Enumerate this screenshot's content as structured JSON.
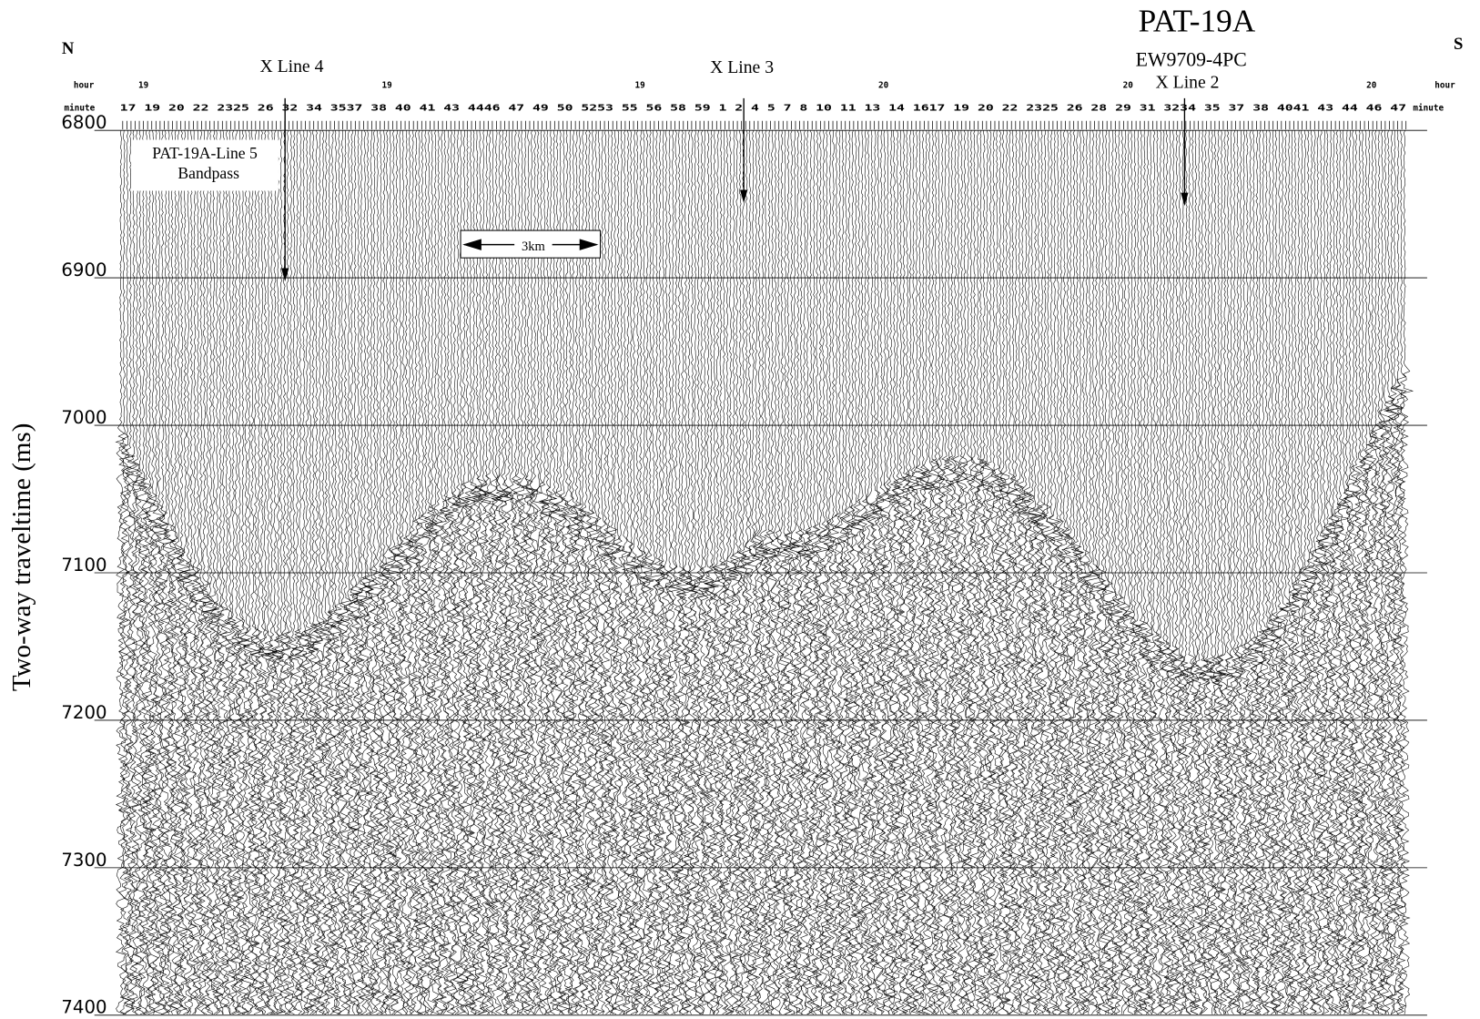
{
  "chart_data": {
    "type": "seismic",
    "title": "PAT-19A",
    "subtitle": "EW9709-4PC",
    "left_label": "N",
    "right_label": "S",
    "ylabel": "Two-way traveltime (ms)",
    "ylim": [
      6800,
      7400
    ],
    "yticks": [
      6800,
      6900,
      7000,
      7100,
      7200,
      7300,
      7400
    ],
    "grid": true,
    "hour_label": "hour",
    "minute_label": "minute",
    "hours": [
      "19",
      "19",
      "19",
      "20",
      "20",
      "20"
    ],
    "minute_row": "17 19 20 22 2325 26 32 34 3537 38 40 41 43 4446 47 49 50 5253 55 56 58 59 1 2 4 5 7 8 10 11 13 14 1617 19 20 22 2325 26 28 29 31 3234 35 37 38 4041 43 44 46 47",
    "crossings": [
      "X Line 4",
      "X Line 3",
      "X Line 2"
    ],
    "panel_label": [
      "PAT-19A-Line 5",
      "Bandpass"
    ],
    "scale_bar": "3km"
  }
}
